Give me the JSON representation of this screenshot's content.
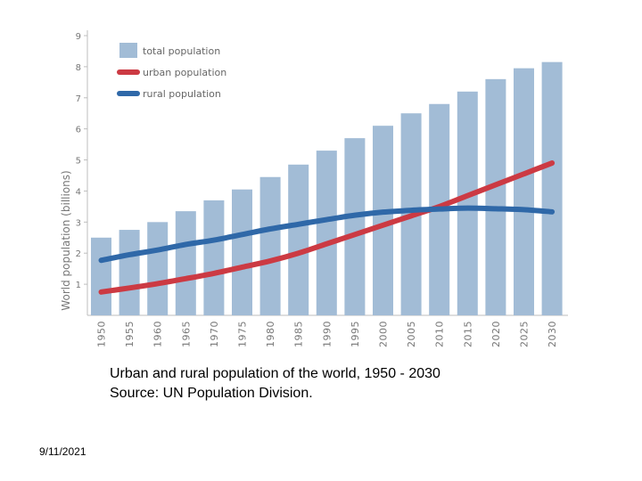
{
  "chart_data": {
    "type": "bar",
    "ylabel": "World population (billions)",
    "ylim": [
      0,
      9
    ],
    "yticks": [
      1,
      2,
      3,
      4,
      5,
      6,
      7,
      8,
      9
    ],
    "categories": [
      "1950",
      "1955",
      "1960",
      "1965",
      "1970",
      "1975",
      "1980",
      "1985",
      "1990",
      "1995",
      "2000",
      "2005",
      "2010",
      "2015",
      "2020",
      "2025",
      "2030"
    ],
    "series": [
      {
        "name": "total population",
        "type": "bar",
        "color": "#a2bcd6",
        "values": [
          2.5,
          2.75,
          3.0,
          3.35,
          3.7,
          4.05,
          4.45,
          4.85,
          5.3,
          5.7,
          6.1,
          6.5,
          6.8,
          7.2,
          7.6,
          7.95,
          8.15
        ]
      },
      {
        "name": "urban population",
        "type": "line",
        "color": "#cc3a43",
        "values": [
          0.75,
          0.88,
          1.02,
          1.18,
          1.35,
          1.55,
          1.75,
          2.0,
          2.3,
          2.6,
          2.9,
          3.2,
          3.5,
          3.85,
          4.2,
          4.55,
          4.9
        ]
      },
      {
        "name": "rural population",
        "type": "line",
        "color": "#2f68a8",
        "values": [
          1.77,
          1.95,
          2.1,
          2.28,
          2.42,
          2.6,
          2.78,
          2.93,
          3.08,
          3.22,
          3.32,
          3.38,
          3.42,
          3.45,
          3.43,
          3.4,
          3.33
        ]
      }
    ],
    "legend": {
      "position": "top-left"
    }
  },
  "caption": {
    "line1": "Urban and rural population of the world, 1950 - 2030",
    "line2": "Source: UN Population Division."
  },
  "footer": {
    "date": "9/11/2021"
  }
}
